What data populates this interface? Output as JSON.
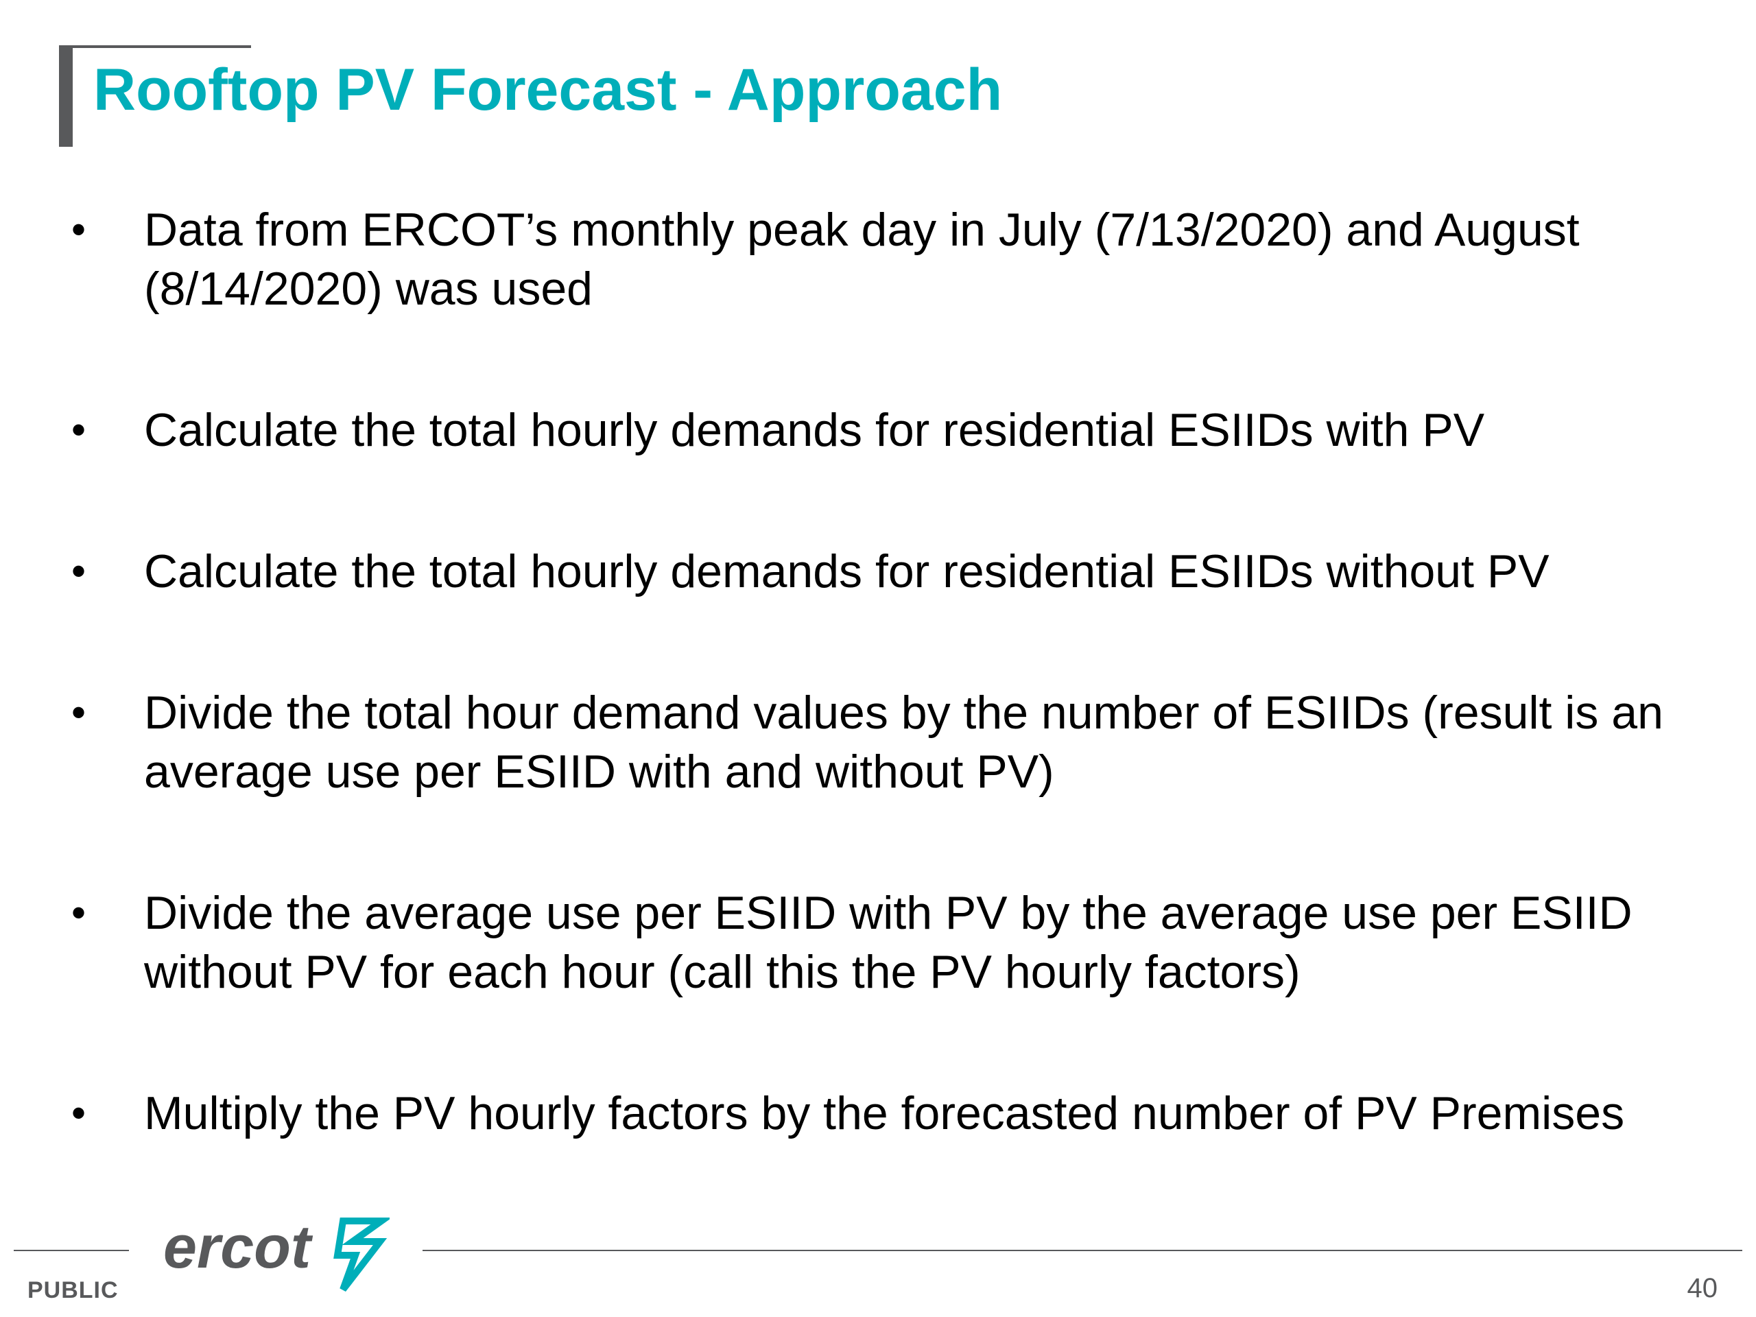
{
  "slide": {
    "title": "Rooftop PV Forecast - Approach",
    "bullets": [
      "Data from ERCOT’s monthly peak day in July (7/13/2020) and August (8/14/2020) was used",
      "Calculate the total hourly demands for residential ESIIDs with PV",
      "Calculate the total hourly demands for residential ESIIDs without PV",
      "Divide the total hour demand values by the number of ESIIDs (result is an average use per ESIID with and without PV)",
      "Divide the average use per ESIID with PV by the average use per ESIID without PV for each hour (call this the PV hourly factors)",
      "Multiply the PV hourly factors by the forecasted number of PV Premises"
    ],
    "bullet_symbol": "•"
  },
  "footer": {
    "logo_text": "ercot",
    "classification": "PUBLIC",
    "page_number": "40"
  },
  "colors": {
    "title": "#00aeb9",
    "accent_gray": "#58595b",
    "body_text": "#000000",
    "logo_teal": "#00aeb9"
  }
}
